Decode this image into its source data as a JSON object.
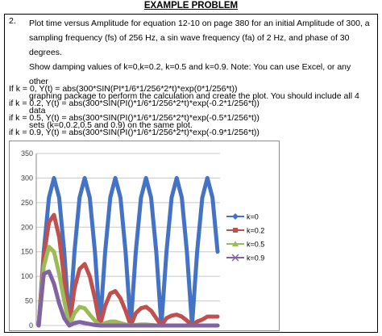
{
  "header": {
    "title": "EXAMPLE PROBLEM"
  },
  "question": {
    "number": "2.",
    "lines": [
      "Plot time versus Amplitude for equation 12-10 on page 380 for an initial Amplitude of 300, a",
      "sampling frequency (fs) of 256 Hz, a sin wave frequency (fa) of 2 Hz, and phase of 30 degrees.",
      "Show damping values of k=0,k=0.2, k=0.5 and k=0.9.   Note: You can use Excel, or any other",
      "graphing package to perform the calculation and create the plot. You should include all 4 data",
      "sets (k=0,0.2,0.5 and 0.9) on the same plot."
    ]
  },
  "equations": [
    "If k = 0, Y(t) = abs(300*SIN(PI*1/6*1/256*2*t)*exp(0*1/256*t))",
    "if k = 0.2, Y(t) = abs(300*SIN(PI()*1/6*1/256*2*t)*exp(-0.2*1/256*t))",
    "if k = 0.5, Y(t) = abs(300*SIN(PI()*1/6*1/256*2*t)*exp(-0.5*1/256*t))",
    "if k = 0.9, Y(t) = abs(300*SIN(PI()*1/6*1/256*2*t)*exp(-0.9*1/256*t))"
  ],
  "chart_data": {
    "type": "line",
    "ylim": [
      0,
      350
    ],
    "yticks": [
      "0",
      "50",
      "100",
      "150",
      "200",
      "250",
      "300",
      "350"
    ],
    "grid": true,
    "legend_position": "right",
    "series": [
      {
        "name": "k=0",
        "color": "#4472C4",
        "values": [
          0,
          150,
          260,
          300,
          260,
          150,
          0,
          150,
          260,
          300,
          260,
          150,
          0,
          150,
          260,
          300,
          260,
          150,
          0,
          150,
          260,
          300,
          260,
          150,
          0,
          150,
          260,
          300,
          260,
          150,
          0,
          150,
          260,
          300,
          260,
          150
        ]
      },
      {
        "name": "k=0.2",
        "color": "#C0504D",
        "values": [
          0,
          140,
          210,
          225,
          180,
          95,
          0,
          75,
          115,
          125,
          100,
          55,
          0,
          40,
          65,
          70,
          55,
          30,
          0,
          25,
          35,
          38,
          30,
          15,
          0,
          15,
          20,
          22,
          18,
          10,
          0,
          8,
          12,
          18,
          18,
          18
        ]
      },
      {
        "name": "k=0.5",
        "color": "#9BBB59",
        "values": [
          0,
          120,
          160,
          150,
          105,
          50,
          0,
          25,
          38,
          35,
          22,
          10,
          0,
          5,
          8,
          8,
          5,
          2,
          0,
          1,
          2,
          2,
          1,
          0,
          0,
          0,
          0,
          0,
          0,
          0,
          0,
          0,
          0,
          0,
          0,
          0
        ]
      },
      {
        "name": "k=0.9",
        "color": "#8064A2",
        "values": [
          0,
          105,
          110,
          85,
          45,
          15,
          0,
          5,
          7,
          5,
          3,
          1,
          0,
          0,
          0,
          0,
          0,
          0,
          0,
          0,
          0,
          0,
          0,
          0,
          0,
          0,
          0,
          0,
          0,
          0,
          0,
          0,
          0,
          0,
          0,
          0
        ]
      }
    ]
  }
}
